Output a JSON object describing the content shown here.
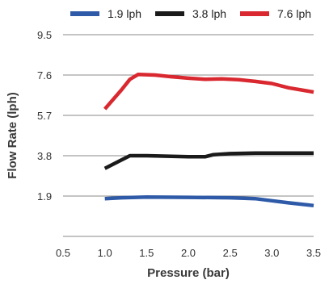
{
  "chart_data": {
    "type": "line",
    "title": "",
    "xlabel": "Pressure (bar)",
    "ylabel": "Flow Rate (lph)",
    "xlim": [
      0.5,
      3.5
    ],
    "ylim": [
      0,
      9.5
    ],
    "x_ticks": [
      "0.5",
      "1.0",
      "1.5",
      "2.0",
      "2.5",
      "3.0",
      "3.5"
    ],
    "x_tick_values": [
      0.5,
      1.0,
      1.5,
      2.0,
      2.5,
      3.0,
      3.5
    ],
    "y_ticks": [
      "1.9",
      "3.8",
      "5.7",
      "7.6",
      "9.5"
    ],
    "y_tick_values": [
      1.9,
      3.8,
      5.7,
      7.6,
      9.5
    ],
    "grid": "horizontal",
    "legend_position": "top",
    "series": [
      {
        "name": "1.9 lph",
        "color": "#2e5aa8",
        "x": [
          1.0,
          1.2,
          1.5,
          2.0,
          2.5,
          2.8,
          3.0,
          3.2,
          3.5
        ],
        "y": [
          1.78,
          1.82,
          1.85,
          1.84,
          1.82,
          1.78,
          1.68,
          1.58,
          1.45
        ]
      },
      {
        "name": "3.8 lph",
        "color": "#1a1a1a",
        "x": [
          1.0,
          1.2,
          1.3,
          1.5,
          2.0,
          2.2,
          2.3,
          2.5,
          2.8,
          3.0,
          3.5
        ],
        "y": [
          3.2,
          3.6,
          3.8,
          3.8,
          3.75,
          3.75,
          3.85,
          3.9,
          3.92,
          3.92,
          3.92
        ]
      },
      {
        "name": "7.6 lph",
        "color": "#d9282f",
        "x": [
          1.0,
          1.2,
          1.3,
          1.4,
          1.6,
          1.8,
          2.0,
          2.2,
          2.4,
          2.6,
          2.8,
          3.0,
          3.2,
          3.5
        ],
        "y": [
          6.0,
          6.9,
          7.4,
          7.63,
          7.6,
          7.52,
          7.45,
          7.4,
          7.42,
          7.38,
          7.3,
          7.2,
          7.0,
          6.8
        ]
      }
    ]
  }
}
